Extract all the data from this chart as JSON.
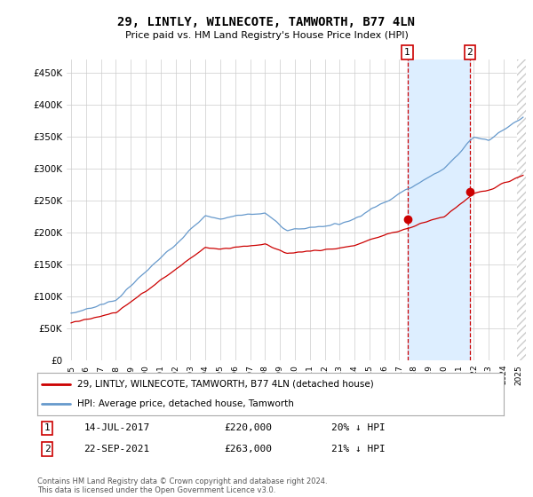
{
  "title": "29, LINTLY, WILNECOTE, TAMWORTH, B77 4LN",
  "subtitle": "Price paid vs. HM Land Registry's House Price Index (HPI)",
  "legend_label_red": "29, LINTLY, WILNECOTE, TAMWORTH, B77 4LN (detached house)",
  "legend_label_blue": "HPI: Average price, detached house, Tamworth",
  "annotation1_label": "1",
  "annotation1_date": "14-JUL-2017",
  "annotation1_price": "£220,000",
  "annotation1_pct": "20% ↓ HPI",
  "annotation2_label": "2",
  "annotation2_date": "22-SEP-2021",
  "annotation2_price": "£263,000",
  "annotation2_pct": "21% ↓ HPI",
  "footer": "Contains HM Land Registry data © Crown copyright and database right 2024.\nThis data is licensed under the Open Government Licence v3.0.",
  "ylim": [
    0,
    470000
  ],
  "yticks": [
    0,
    50000,
    100000,
    150000,
    200000,
    250000,
    300000,
    350000,
    400000,
    450000
  ],
  "red_color": "#cc0000",
  "blue_color": "#6699cc",
  "vline1_x": 2017.54,
  "vline2_x": 2021.73,
  "marker1_x": 2017.54,
  "marker1_y": 220000,
  "marker2_x": 2021.73,
  "marker2_y": 263000,
  "bg_color": "#ffffff",
  "grid_color": "#cccccc",
  "shade_color": "#ddeeff",
  "hatch_start": 2025.0,
  "xmin": 1994.7,
  "xmax": 2025.5
}
